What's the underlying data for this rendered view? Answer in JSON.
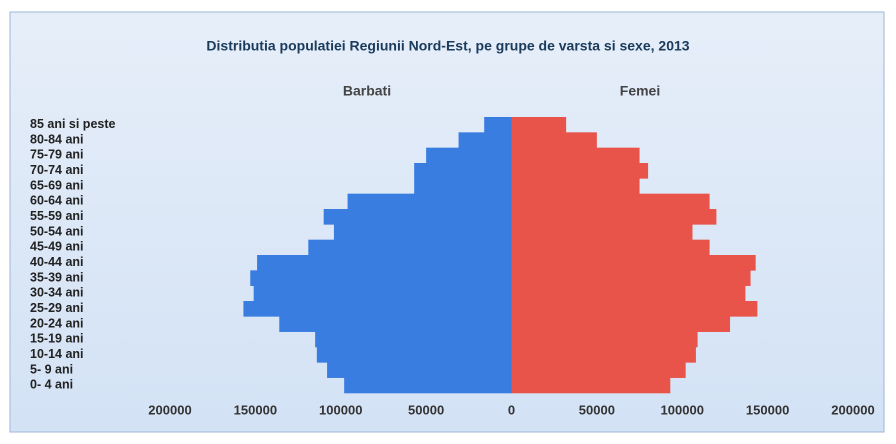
{
  "chart_data": {
    "type": "pyramid",
    "title": "Distributia populatiei Regiunii Nord-Est, pe grupe de varsta si sexe, 2013",
    "categories": [
      "85 ani si peste",
      "80-84 ani",
      "75-79 ani",
      "70-74 ani",
      "65-69 ani",
      "60-64 ani",
      "55-59 ani",
      "50-54 ani",
      "45-49 ani",
      "40-44 ani",
      "35-39 ani",
      "30-34 ani",
      "25-29 ani",
      "20-24 ani",
      "15-19 ani",
      "10-14 ani",
      "5- 9 ani",
      "0- 4 ani"
    ],
    "series": [
      {
        "name": "Barbati",
        "color": "#3a7de0",
        "side": "left",
        "values": [
          16000,
          31000,
          50000,
          57000,
          57000,
          96000,
          110000,
          104000,
          119000,
          149000,
          153000,
          151000,
          157000,
          136000,
          115000,
          114000,
          108000,
          98000
        ]
      },
      {
        "name": "Femei",
        "color": "#e8534a",
        "side": "right",
        "values": [
          32000,
          50000,
          75000,
          80000,
          75000,
          116000,
          120000,
          106000,
          116000,
          143000,
          140000,
          137000,
          144000,
          128000,
          109000,
          108000,
          102000,
          93000
        ]
      }
    ],
    "xlim": [
      -200000,
      200000
    ],
    "xticks": [
      {
        "value": -200000,
        "label": "200000"
      },
      {
        "value": -150000,
        "label": "150000"
      },
      {
        "value": -100000,
        "label": "100000"
      },
      {
        "value": -50000,
        "label": "50000"
      },
      0,
      50000,
      100000,
      150000,
      200000
    ]
  }
}
